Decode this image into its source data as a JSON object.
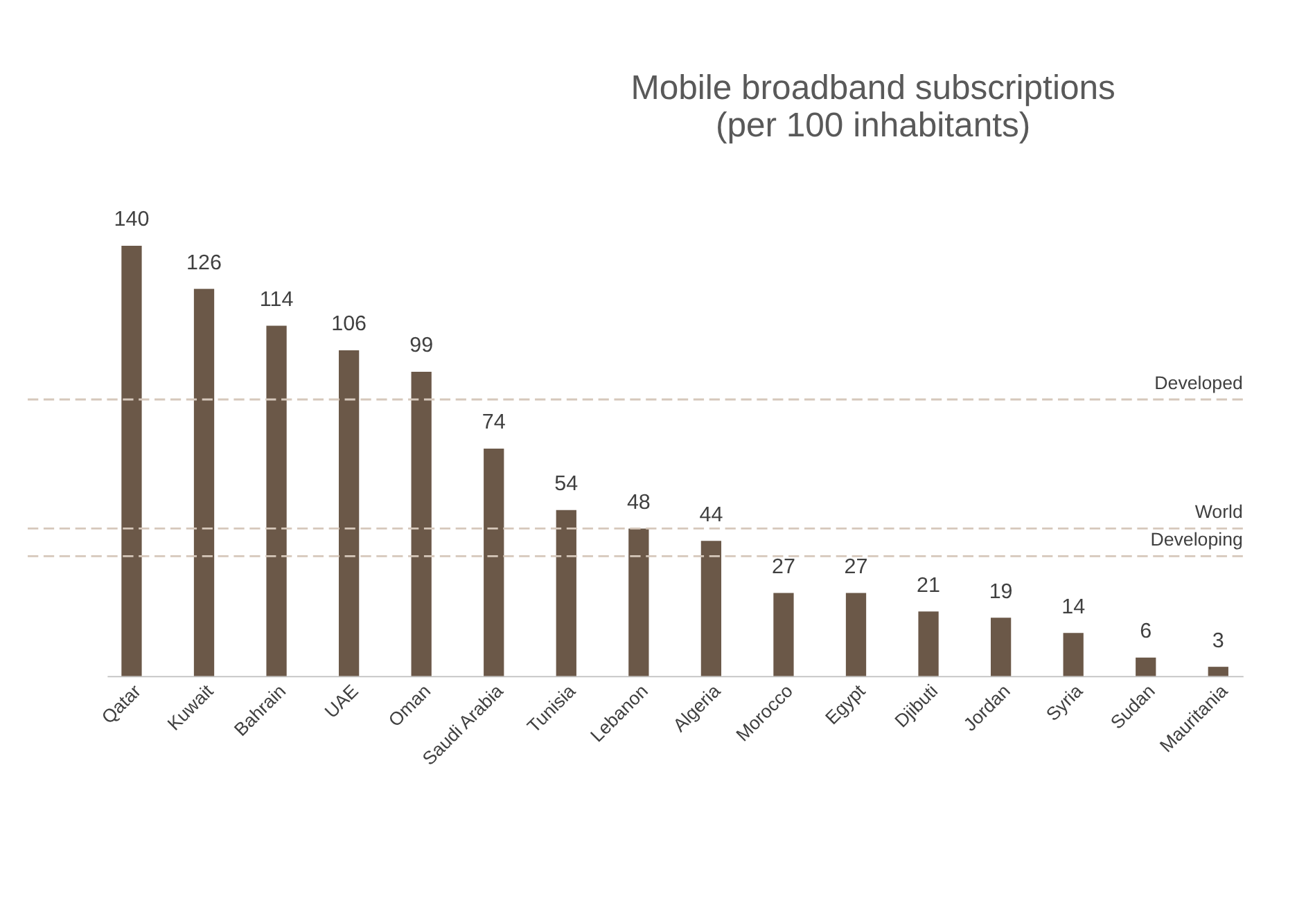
{
  "chart_data": {
    "type": "bar",
    "title": [
      "Mobile broadband subscriptions",
      "(per 100 inhabitants)"
    ],
    "categories": [
      "Qatar",
      "Kuwait",
      "Bahrain",
      "UAE",
      "Oman",
      "Saudi Arabia",
      "Tunisia",
      "Lebanon",
      "Algeria",
      "Morocco",
      "Egypt",
      "Djibuti",
      "Jordan",
      "Syria",
      "Sudan",
      "Mauritania"
    ],
    "values": [
      140,
      126,
      114,
      106,
      99,
      74,
      54,
      48,
      44,
      27,
      27,
      21,
      19,
      14,
      6,
      3
    ],
    "color": "#6b5848",
    "data_labels": true,
    "tick_labels": "x",
    "ref_lines": [
      {
        "axis": "y",
        "value": 90,
        "label": "Developed",
        "color": "#d6c8bb",
        "line_style": "dashed"
      },
      {
        "axis": "y",
        "value": 48,
        "label": "World",
        "color": "#d6c8bb",
        "line_style": "dashed"
      },
      {
        "axis": "y",
        "value": 39,
        "label": "Developing",
        "color": "#d6c8bb",
        "line_style": "dashed"
      }
    ]
  }
}
